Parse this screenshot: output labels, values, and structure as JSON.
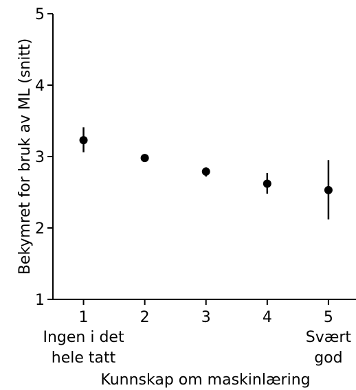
{
  "chart_data": {
    "type": "scatter",
    "xlabel": "Kunnskap om maskinlæring",
    "ylabel": "Bekymret for bruk av ML (snitt)",
    "xlim": [
      0.5,
      5.45
    ],
    "ylim": [
      1,
      5
    ],
    "x_ticks": [
      1,
      2,
      3,
      4,
      5
    ],
    "y_ticks": [
      1,
      2,
      3,
      4,
      5
    ],
    "x_tick_labels": [
      "1",
      "2",
      "3",
      "4",
      "5"
    ],
    "y_tick_labels": [
      "1",
      "2",
      "3",
      "4",
      "5"
    ],
    "x_extreme_labels": [
      {
        "x": 1,
        "lines": [
          "Ingen i det",
          "hele tatt"
        ]
      },
      {
        "x": 5,
        "lines": [
          "Svært",
          "god"
        ]
      }
    ],
    "grid": false,
    "points": [
      {
        "x": 1,
        "y": 3.23,
        "err_low": 3.06,
        "err_high": 3.41
      },
      {
        "x": 2,
        "y": 2.98,
        "err_low": 2.95,
        "err_high": 3.01
      },
      {
        "x": 3,
        "y": 2.79,
        "err_low": 2.72,
        "err_high": 2.85
      },
      {
        "x": 4,
        "y": 2.62,
        "err_low": 2.48,
        "err_high": 2.77
      },
      {
        "x": 5,
        "y": 2.53,
        "err_low": 2.12,
        "err_high": 2.95
      }
    ],
    "colors": {
      "marker": "#000000",
      "axis": "#000000"
    }
  }
}
